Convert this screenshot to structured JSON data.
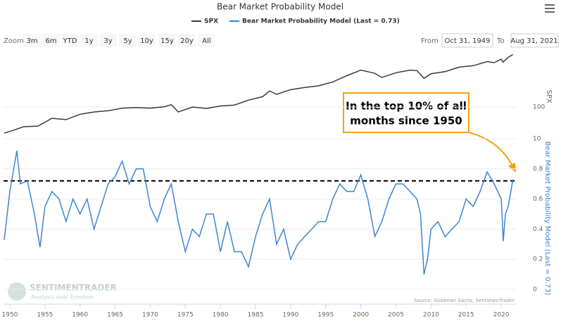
{
  "chart_data": {
    "type": "line",
    "title": "Bear Market Probability Model",
    "zoom_label": "Zoom",
    "zoom_buttons": [
      "3m",
      "6m",
      "YTD",
      "1y",
      "3y",
      "5y",
      "10y",
      "15y",
      "20y",
      "All"
    ],
    "range_from_label": "From",
    "range_from": "Oct 31, 1949",
    "range_to_label": "To",
    "range_to": "Aug 31, 2021",
    "y_label": "SPX",
    "y2_label": "Bear Market Probability Model (Last = 0.73)",
    "annotation": [
      "In the top 10% of all",
      "months since 1950"
    ],
    "source": "Source: Goldman Sachs, SentimenTrader",
    "logo": [
      "SENTIMENTRADER",
      "Analysis over Emotion"
    ],
    "xlim": [
      1949.1,
      2022.1
    ],
    "xticks": [
      1950,
      1955,
      1960,
      1965,
      1970,
      1975,
      1980,
      1985,
      1990,
      1995,
      2000,
      2005,
      2010,
      2015,
      2020
    ],
    "ylim": [
      8.6,
      5100
    ],
    "yticks": [
      10,
      100
    ],
    "ylog": true,
    "y2lim": [
      0,
      1
    ],
    "y2ticks": [
      0,
      0.2,
      0.4,
      0.6,
      0.8
    ],
    "grid": true,
    "reference_line": {
      "value": 0.72,
      "axis": "y2"
    },
    "series": [
      {
        "name": "SPX",
        "color": "#3a3a3a",
        "x": [
          1949.2,
          1950,
          1952,
          1954,
          1956,
          1958,
          1960,
          1962,
          1964,
          1966,
          1968,
          1970,
          1972,
          1973,
          1974,
          1976,
          1978,
          1980,
          1982,
          1984,
          1986,
          1987,
          1988,
          1990,
          1992,
          1994,
          1996,
          1998,
          2000,
          2001,
          2002,
          2003,
          2005,
          2007,
          2008,
          2009,
          2010,
          2012,
          2014,
          2016,
          2018,
          2019,
          2020,
          2020.25,
          2021,
          2021.67
        ],
        "values": [
          15,
          17,
          24,
          25,
          44,
          40,
          59,
          70,
          76,
          92,
          96,
          92,
          102,
          118,
          70,
          100,
          90,
          108,
          115,
          165,
          210,
          320,
          250,
          350,
          410,
          465,
          615,
          970,
          1450,
          1300,
          1150,
          850,
          1200,
          1450,
          1400,
          800,
          1120,
          1300,
          1800,
          2000,
          2700,
          2500,
          3200,
          2600,
          3700,
          4520
        ]
      },
      {
        "name": "Bear Market Probability Model (Last = 0.73)",
        "color": "#3d85d1",
        "axis": "y2",
        "x": [
          1949.2,
          1950,
          1951,
          1951.5,
          1952.5,
          1953.5,
          1954.3,
          1955,
          1956,
          1957,
          1958,
          1959,
          1960,
          1961,
          1962,
          1963,
          1964,
          1965,
          1966,
          1967,
          1968,
          1969,
          1970,
          1971,
          1972,
          1973,
          1974,
          1975,
          1976,
          1977,
          1978,
          1979,
          1980,
          1981,
          1982,
          1983,
          1984,
          1985,
          1986,
          1987,
          1988,
          1989,
          1990,
          1991,
          1992,
          1993,
          1994,
          1995,
          1996,
          1997,
          1998,
          1999,
          2000,
          2001,
          2002,
          2003,
          2004,
          2005,
          2006,
          2007,
          2008,
          2008.5,
          2009,
          2009.5,
          2010,
          2011,
          2012,
          2013,
          2014,
          2015,
          2016,
          2017,
          2018,
          2019,
          2020,
          2020.3,
          2020.6,
          2021,
          2021.67
        ],
        "values": [
          0.33,
          0.65,
          0.92,
          0.7,
          0.72,
          0.5,
          0.28,
          0.55,
          0.65,
          0.6,
          0.45,
          0.6,
          0.5,
          0.6,
          0.4,
          0.55,
          0.7,
          0.75,
          0.85,
          0.7,
          0.8,
          0.8,
          0.55,
          0.45,
          0.6,
          0.7,
          0.45,
          0.25,
          0.4,
          0.35,
          0.5,
          0.5,
          0.25,
          0.45,
          0.25,
          0.25,
          0.15,
          0.35,
          0.5,
          0.6,
          0.3,
          0.4,
          0.2,
          0.3,
          0.35,
          0.4,
          0.45,
          0.45,
          0.6,
          0.7,
          0.65,
          0.65,
          0.76,
          0.6,
          0.35,
          0.45,
          0.6,
          0.7,
          0.7,
          0.65,
          0.6,
          0.5,
          0.1,
          0.2,
          0.4,
          0.45,
          0.35,
          0.4,
          0.45,
          0.6,
          0.55,
          0.65,
          0.78,
          0.7,
          0.6,
          0.32,
          0.5,
          0.55,
          0.73
        ]
      }
    ]
  }
}
